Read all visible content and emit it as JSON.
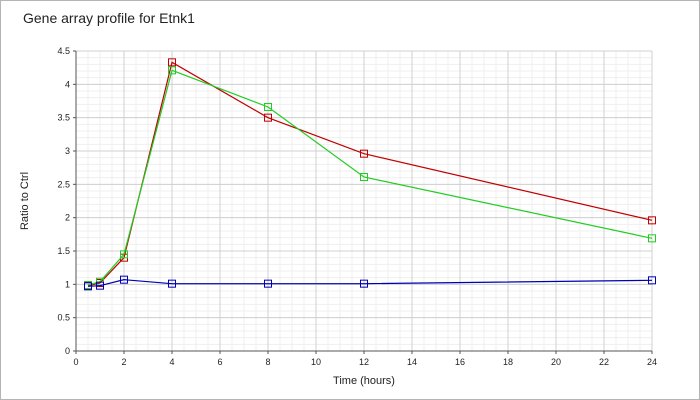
{
  "chart_data": {
    "type": "line",
    "title": "Gene array profile for Etnk1",
    "xlabel": "Time (hours)",
    "ylabel": "Ratio to Ctrl",
    "xlim": [
      0,
      24
    ],
    "ylim": [
      0,
      4.5
    ],
    "xticks": [
      0,
      2,
      4,
      6,
      8,
      10,
      12,
      14,
      16,
      18,
      20,
      22,
      24
    ],
    "yticks": [
      0,
      0.5,
      1,
      1.5,
      2,
      2.5,
      3,
      3.5,
      4,
      4.5
    ],
    "grid": true,
    "legend": "none",
    "x": [
      0.5,
      1,
      2,
      4,
      8,
      12,
      24
    ],
    "series": [
      {
        "color": "#c00000",
        "values": [
          0.98,
          1.02,
          1.4,
          4.33,
          3.5,
          2.96,
          1.96
        ]
      },
      {
        "color": "#22cc22",
        "values": [
          0.99,
          1.04,
          1.45,
          4.21,
          3.66,
          2.61,
          1.69
        ]
      },
      {
        "color": "#0000b4",
        "values": [
          0.97,
          0.98,
          1.07,
          1.01,
          1.01,
          1.01,
          1.06
        ]
      }
    ]
  }
}
